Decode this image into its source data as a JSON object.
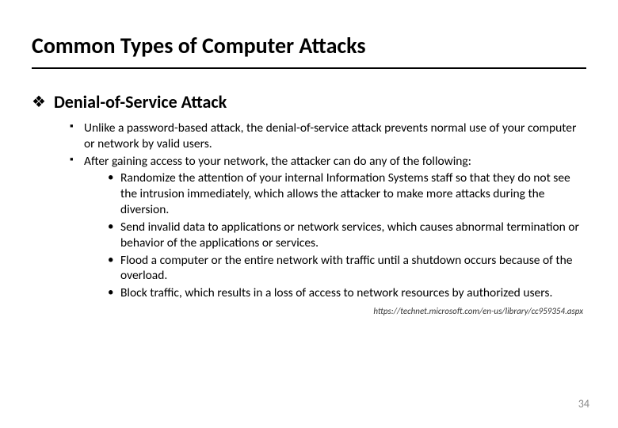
{
  "title": "Common Types of Computer Attacks",
  "heading": "Denial-of-Service Attack",
  "bullets": {
    "b1": "Unlike a password-based attack, the denial-of-service attack prevents normal use of your computer or network by valid users.",
    "b2": "After gaining access to your network, the attacker can do any of the following:",
    "sub1": "Randomize the attention of your internal Information Systems staff so that they do not see the intrusion immediately, which allows the attacker to make more attacks during the diversion.",
    "sub2": "Send invalid data to applications or network services, which causes abnormal termination or behavior of the applications or services.",
    "sub3": "Flood a computer or the entire network with traffic until a shutdown occurs because of the overload.",
    "sub4": "Block traffic, which results in a loss of access to network resources by authorized users."
  },
  "citation": "https://technet.microsoft.com/en-us/library/cc959354.aspx",
  "page_number": "34",
  "colors": {
    "text": "#000000",
    "background": "#ffffff",
    "pagenum": "#8a8a8a",
    "citation": "#333333"
  }
}
